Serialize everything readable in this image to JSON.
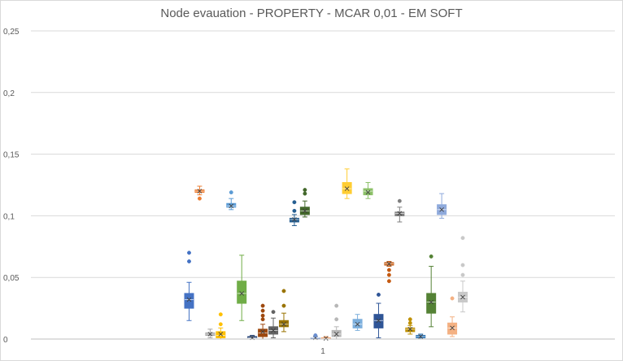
{
  "chart_data": {
    "type": "box",
    "title": "Node evauation - PROPERTY - MCAR 0,01 - EM SOFT",
    "categories": [
      "1"
    ],
    "ylim": [
      0,
      0.25
    ],
    "yticks": [
      {
        "value": 0,
        "label": "0"
      },
      {
        "value": 0.05,
        "label": "0,05"
      },
      {
        "value": 0.1,
        "label": "0,1"
      },
      {
        "value": 0.15,
        "label": "0,15"
      },
      {
        "value": 0.2,
        "label": "0,2"
      },
      {
        "value": 0.25,
        "label": "0,25"
      }
    ],
    "grid": true,
    "legend": "none",
    "series": [
      {
        "color": "#4472c4",
        "min": 0.015,
        "q1": 0.025,
        "median": 0.032,
        "mean": 0.032,
        "q3": 0.037,
        "max": 0.046,
        "outliers": [
          0.063,
          0.07
        ]
      },
      {
        "color": "#ed7d31",
        "min": 0.117,
        "q1": 0.119,
        "median": 0.12,
        "mean": 0.12,
        "q3": 0.121,
        "max": 0.124,
        "outliers": [
          0.114
        ]
      },
      {
        "color": "#a5a5a5",
        "min": 0.001,
        "q1": 0.003,
        "median": 0.004,
        "mean": 0.004,
        "q3": 0.005,
        "max": 0.008,
        "outliers": []
      },
      {
        "color": "#ffc000",
        "min": 0.0,
        "q1": 0.001,
        "median": 0.003,
        "mean": 0.004,
        "q3": 0.006,
        "max": 0.009,
        "outliers": [
          0.012,
          0.02
        ]
      },
      {
        "color": "#5b9bd5",
        "min": 0.105,
        "q1": 0.107,
        "median": 0.108,
        "mean": 0.108,
        "q3": 0.11,
        "max": 0.114,
        "outliers": [
          0.119
        ]
      },
      {
        "color": "#70ad47",
        "min": 0.015,
        "q1": 0.029,
        "median": 0.037,
        "mean": 0.037,
        "q3": 0.047,
        "max": 0.068,
        "outliers": []
      },
      {
        "color": "#264478",
        "min": 0.0,
        "q1": 0.001,
        "median": 0.001,
        "mean": 0.001,
        "q3": 0.002,
        "max": 0.003,
        "outliers": []
      },
      {
        "color": "#9e480e",
        "min": 0.0,
        "q1": 0.002,
        "median": 0.005,
        "mean": 0.006,
        "q3": 0.008,
        "max": 0.012,
        "outliers": [
          0.016,
          0.019,
          0.023,
          0.027
        ]
      },
      {
        "color": "#636363",
        "min": 0.001,
        "q1": 0.004,
        "median": 0.007,
        "mean": 0.007,
        "q3": 0.01,
        "max": 0.017,
        "outliers": [
          0.022
        ]
      },
      {
        "color": "#997300",
        "min": 0.006,
        "q1": 0.01,
        "median": 0.012,
        "mean": 0.012,
        "q3": 0.015,
        "max": 0.021,
        "outliers": [
          0.027,
          0.039
        ]
      },
      {
        "color": "#255e91",
        "min": 0.092,
        "q1": 0.095,
        "median": 0.097,
        "mean": 0.097,
        "q3": 0.098,
        "max": 0.101,
        "outliers": [
          0.104,
          0.111
        ]
      },
      {
        "color": "#43682b",
        "min": 0.099,
        "q1": 0.101,
        "median": 0.104,
        "mean": 0.104,
        "q3": 0.107,
        "max": 0.112,
        "outliers": [
          0.118,
          0.121
        ]
      },
      {
        "color": "#698ed0",
        "min": 0.0,
        "q1": 0.0,
        "median": 0.001,
        "mean": 0.001,
        "q3": 0.001,
        "max": 0.002,
        "outliers": [
          0.003
        ]
      },
      {
        "color": "#f1975a",
        "min": 0.0,
        "q1": 0.0,
        "median": 0.0005,
        "mean": 0.0005,
        "q3": 0.001,
        "max": 0.002,
        "outliers": []
      },
      {
        "color": "#b7b7b7",
        "min": 0.0,
        "q1": 0.002,
        "median": 0.004,
        "mean": 0.004,
        "q3": 0.007,
        "max": 0.01,
        "outliers": [
          0.016,
          0.027
        ]
      },
      {
        "color": "#ffcd33",
        "min": 0.114,
        "q1": 0.118,
        "median": 0.122,
        "mean": 0.122,
        "q3": 0.127,
        "max": 0.138,
        "outliers": []
      },
      {
        "color": "#7cafdd",
        "min": 0.007,
        "q1": 0.009,
        "median": 0.012,
        "mean": 0.012,
        "q3": 0.016,
        "max": 0.02,
        "outliers": []
      },
      {
        "color": "#8cc168",
        "min": 0.114,
        "q1": 0.117,
        "median": 0.12,
        "mean": 0.119,
        "q3": 0.122,
        "max": 0.127,
        "outliers": []
      },
      {
        "color": "#2f5597",
        "min": 0.001,
        "q1": 0.009,
        "median": 0.015,
        "mean": 0.015,
        "q3": 0.02,
        "max": 0.029,
        "outliers": [
          0.036
        ]
      },
      {
        "color": "#c55a11",
        "min": 0.059,
        "q1": 0.06,
        "median": 0.061,
        "mean": 0.061,
        "q3": 0.062,
        "max": 0.063,
        "outliers": [
          0.056,
          0.052,
          0.047
        ]
      },
      {
        "color": "#7f7f7f",
        "min": 0.095,
        "q1": 0.1,
        "median": 0.102,
        "mean": 0.102,
        "q3": 0.103,
        "max": 0.107,
        "outliers": [
          0.112
        ]
      },
      {
        "color": "#bf9000",
        "min": 0.004,
        "q1": 0.006,
        "median": 0.008,
        "mean": 0.008,
        "q3": 0.009,
        "max": 0.011,
        "outliers": [
          0.013,
          0.016
        ]
      },
      {
        "color": "#2e75b6",
        "min": 0.0,
        "q1": 0.001,
        "median": 0.002,
        "mean": 0.002,
        "q3": 0.003,
        "max": 0.004,
        "outliers": []
      },
      {
        "color": "#548235",
        "min": 0.01,
        "q1": 0.021,
        "median": 0.03,
        "mean": 0.03,
        "q3": 0.037,
        "max": 0.059,
        "outliers": [
          0.067
        ]
      },
      {
        "color": "#8faadc",
        "min": 0.098,
        "q1": 0.101,
        "median": 0.105,
        "mean": 0.105,
        "q3": 0.109,
        "max": 0.118,
        "outliers": []
      },
      {
        "color": "#f4b183",
        "min": 0.002,
        "q1": 0.004,
        "median": 0.009,
        "mean": 0.009,
        "q3": 0.013,
        "max": 0.018,
        "outliers": [
          0.033
        ]
      },
      {
        "color": "#c9c9c9",
        "min": 0.022,
        "q1": 0.03,
        "median": 0.034,
        "mean": 0.034,
        "q3": 0.038,
        "max": 0.047,
        "outliers": [
          0.052,
          0.06,
          0.082
        ]
      }
    ]
  }
}
